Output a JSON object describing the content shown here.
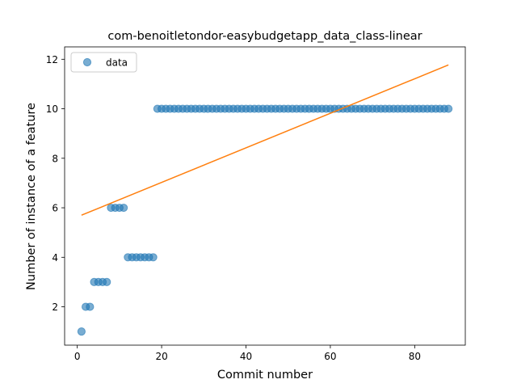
{
  "chart_data": {
    "type": "scatter",
    "title": "com-benoitletondor-easybudgetapp_data_class-linear",
    "xlabel": "Commit number",
    "ylabel": "Number of instance of a feature",
    "xlim": [
      -3,
      92
    ],
    "ylim": [
      0.45,
      12.5
    ],
    "xticks": [
      0,
      20,
      40,
      60,
      80
    ],
    "yticks": [
      2,
      4,
      6,
      8,
      10,
      12
    ],
    "legend": {
      "placement": "upper-left",
      "entries": [
        "data"
      ]
    },
    "series": [
      {
        "name": "data",
        "kind": "scatter",
        "color": "#1f77b4",
        "x": [
          1,
          2,
          3,
          4,
          5,
          6,
          7,
          8,
          9,
          10,
          11,
          12,
          13,
          14,
          15,
          16,
          17,
          18,
          19,
          20,
          21,
          22,
          23,
          24,
          25,
          26,
          27,
          28,
          29,
          30,
          31,
          32,
          33,
          34,
          35,
          36,
          37,
          38,
          39,
          40,
          41,
          42,
          43,
          44,
          45,
          46,
          47,
          48,
          49,
          50,
          51,
          52,
          53,
          54,
          55,
          56,
          57,
          58,
          59,
          60,
          61,
          62,
          63,
          64,
          65,
          66,
          67,
          68,
          69,
          70,
          71,
          72,
          73,
          74,
          75,
          76,
          77,
          78,
          79,
          80,
          81,
          82,
          83,
          84,
          85,
          86,
          87,
          88
        ],
        "y": [
          1,
          2,
          2,
          3,
          3,
          3,
          3,
          6,
          6,
          6,
          6,
          4,
          4,
          4,
          4,
          4,
          4,
          4,
          10,
          10,
          10,
          10,
          10,
          10,
          10,
          10,
          10,
          10,
          10,
          10,
          10,
          10,
          10,
          10,
          10,
          10,
          10,
          10,
          10,
          10,
          10,
          10,
          10,
          10,
          10,
          10,
          10,
          10,
          10,
          10,
          10,
          10,
          10,
          10,
          10,
          10,
          10,
          10,
          10,
          10,
          10,
          10,
          10,
          10,
          10,
          10,
          10,
          10,
          10,
          10,
          10,
          10,
          10,
          10,
          10,
          10,
          10,
          10,
          10,
          10,
          10,
          10,
          10,
          10,
          10,
          10,
          10,
          10
        ]
      },
      {
        "kind": "line",
        "color": "#ff7f0e",
        "x": [
          1,
          88
        ],
        "y": [
          5.7,
          11.77
        ]
      }
    ]
  }
}
